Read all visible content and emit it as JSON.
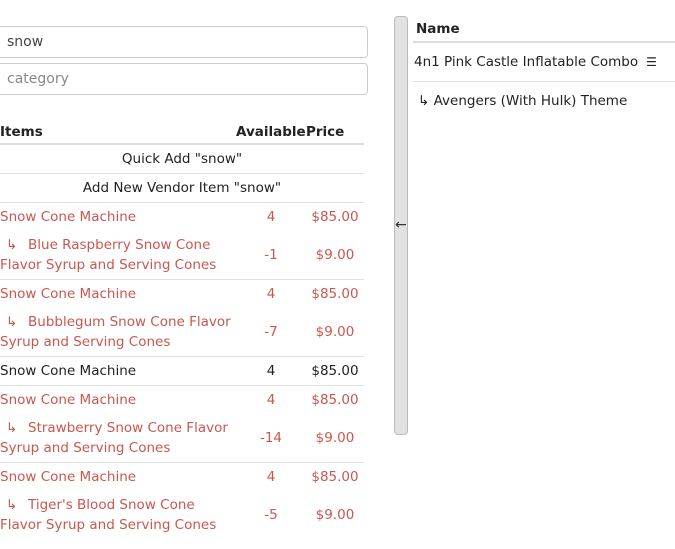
{
  "search": {
    "value": "snow",
    "category_placeholder": "category"
  },
  "items_table": {
    "headers": {
      "items": "Items",
      "available": "Available",
      "price": "Price"
    },
    "quick_add": "Quick Add \"snow\"",
    "add_vendor": "Add New Vendor Item \"snow\"",
    "rows": [
      {
        "name": "Snow Cone Machine",
        "available": "4",
        "price": "$85.00",
        "highlight": true,
        "sub": {
          "name": "Blue Raspberry Snow Cone Flavor Syrup and Serving Cones",
          "available": "-1",
          "price": "$9.00"
        }
      },
      {
        "name": "Snow Cone Machine",
        "available": "4",
        "price": "$85.00",
        "highlight": true,
        "sub": {
          "name": "Bubblegum Snow Cone Flavor Syrup and Serving Cones",
          "available": "-7",
          "price": "$9.00"
        }
      },
      {
        "name": "Snow Cone Machine",
        "available": "4",
        "price": "$85.00",
        "highlight": false
      },
      {
        "name": "Snow Cone Machine",
        "available": "4",
        "price": "$85.00",
        "highlight": true,
        "sub": {
          "name": "Strawberry Snow Cone Flavor Syrup and Serving Cones",
          "available": "-14",
          "price": "$9.00"
        }
      },
      {
        "name": "Snow Cone Machine",
        "available": "4",
        "price": "$85.00",
        "highlight": true,
        "sub": {
          "name": "Tiger's Blood Snow Cone Flavor Syrup and Serving Cones",
          "available": "-5",
          "price": "$9.00"
        }
      }
    ]
  },
  "colors": {
    "highlight": "#c9574f"
  },
  "splitter": {
    "icon": "arrow-left-icon",
    "glyph": "←"
  },
  "right_panel": {
    "header": "Name",
    "item": "4n1 Pink Castle Inflatable Combo",
    "item_icon": "list-icon",
    "sub_item": "Avengers (With Hulk) Theme"
  }
}
